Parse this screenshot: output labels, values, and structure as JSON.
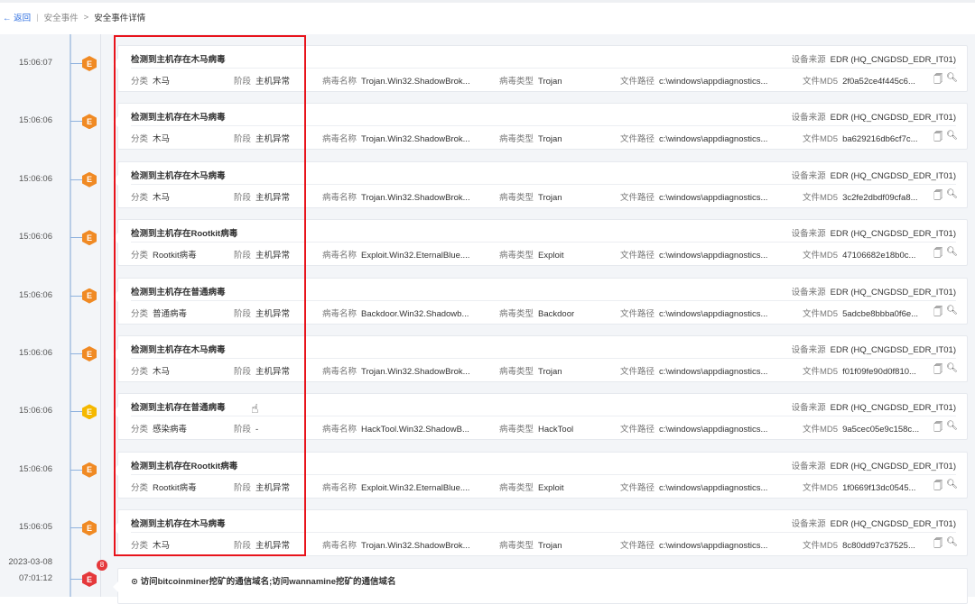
{
  "nav": {
    "back": "返回",
    "crumb1": "安全事件",
    "arrow": ">",
    "crumb2": "安全事件详情"
  },
  "labels": {
    "category": "分类",
    "stage": "阶段",
    "virus_name": "病毒名称",
    "virus_type": "病毒类型",
    "file_path": "文件路径",
    "md5": "文件MD5",
    "source": "设备来源"
  },
  "colors": {
    "orange": "#f08a24",
    "yellow": "#f5b800",
    "red": "#e5383b",
    "highlight": "#e8131b"
  },
  "events": [
    {
      "time": "15:06:07",
      "level": "E",
      "color": "orange",
      "title": "检测到主机存在木马病毒",
      "source": "EDR (HQ_CNGDSD_EDR_IT01)",
      "category": "木马",
      "stage": "主机异常",
      "virus_name": "Trojan.Win32.ShadowBrok...",
      "virus_type": "Trojan",
      "file_path": "c:\\windows\\appdiagnostics...",
      "md5": "2f0a52ce4f445c6..."
    },
    {
      "time": "15:06:06",
      "level": "E",
      "color": "orange",
      "title": "检测到主机存在木马病毒",
      "source": "EDR (HQ_CNGDSD_EDR_IT01)",
      "category": "木马",
      "stage": "主机异常",
      "virus_name": "Trojan.Win32.ShadowBrok...",
      "virus_type": "Trojan",
      "file_path": "c:\\windows\\appdiagnostics...",
      "md5": "ba629216db6cf7c..."
    },
    {
      "time": "15:06:06",
      "level": "E",
      "color": "orange",
      "title": "检测到主机存在木马病毒",
      "source": "EDR (HQ_CNGDSD_EDR_IT01)",
      "category": "木马",
      "stage": "主机异常",
      "virus_name": "Trojan.Win32.ShadowBrok...",
      "virus_type": "Trojan",
      "file_path": "c:\\windows\\appdiagnostics...",
      "md5": "3c2fe2dbdf09cfa8..."
    },
    {
      "time": "15:06:06",
      "level": "E",
      "color": "orange",
      "title": "检测到主机存在Rootkit病毒",
      "source": "EDR (HQ_CNGDSD_EDR_IT01)",
      "category": "Rootkit病毒",
      "stage": "主机异常",
      "virus_name": "Exploit.Win32.EternalBlue....",
      "virus_type": "Exploit",
      "file_path": "c:\\windows\\appdiagnostics...",
      "md5": "47106682e18b0c..."
    },
    {
      "time": "15:06:06",
      "level": "E",
      "color": "orange",
      "title": "检测到主机存在普通病毒",
      "source": "EDR (HQ_CNGDSD_EDR_IT01)",
      "category": "普通病毒",
      "stage": "主机异常",
      "virus_name": "Backdoor.Win32.Shadowb...",
      "virus_type": "Backdoor",
      "file_path": "c:\\windows\\appdiagnostics...",
      "md5": "5adcbe8bbba0f6e..."
    },
    {
      "time": "15:06:06",
      "level": "E",
      "color": "orange",
      "title": "检测到主机存在木马病毒",
      "source": "EDR (HQ_CNGDSD_EDR_IT01)",
      "category": "木马",
      "stage": "主机异常",
      "virus_name": "Trojan.Win32.ShadowBrok...",
      "virus_type": "Trojan",
      "file_path": "c:\\windows\\appdiagnostics...",
      "md5": "f01f09fe90d0f810..."
    },
    {
      "time": "15:06:06",
      "level": "E",
      "color": "yellow",
      "title": "检测到主机存在普通病毒",
      "source": "EDR (HQ_CNGDSD_EDR_IT01)",
      "category": "感染病毒",
      "stage": "-",
      "virus_name": "HackTool.Win32.ShadowB...",
      "virus_type": "HackTool",
      "file_path": "c:\\windows\\appdiagnostics...",
      "md5": "9a5cec05e9c158c..."
    },
    {
      "time": "15:06:06",
      "level": "E",
      "color": "orange",
      "title": "检测到主机存在Rootkit病毒",
      "source": "EDR (HQ_CNGDSD_EDR_IT01)",
      "category": "Rootkit病毒",
      "stage": "主机异常",
      "virus_name": "Exploit.Win32.EternalBlue....",
      "virus_type": "Exploit",
      "file_path": "c:\\windows\\appdiagnostics...",
      "md5": "1f0669f13dc0545..."
    },
    {
      "time": "15:06:05",
      "level": "E",
      "color": "orange",
      "title": "检测到主机存在木马病毒",
      "source": "EDR (HQ_CNGDSD_EDR_IT01)",
      "category": "木马",
      "stage": "主机异常",
      "virus_name": "Trojan.Win32.ShadowBrok...",
      "virus_type": "Trojan",
      "file_path": "c:\\windows\\appdiagnostics...",
      "md5": "8c80dd97c37525..."
    }
  ],
  "last_event": {
    "date": "2023-03-08",
    "time": "07:01:12",
    "level": "E",
    "count": "8",
    "title": "访问bitcoinminer挖矿的通信域名;访问wannamine挖矿的通信域名"
  }
}
